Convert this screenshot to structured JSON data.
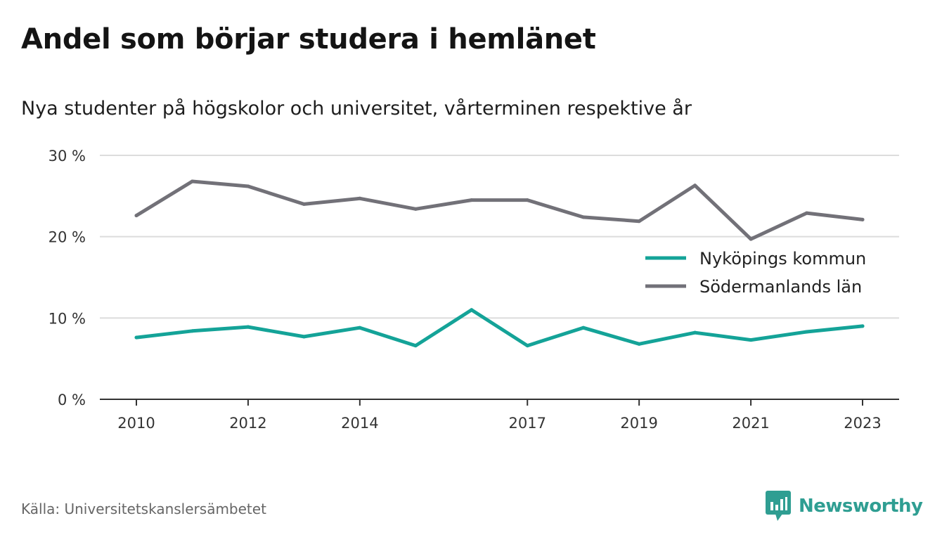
{
  "header": {
    "title": "Andel som börjar studera i hemlänet",
    "subtitle": "Nya studenter på högskolor och universitet, vårterminen respektive år"
  },
  "footer": {
    "source": "Källa: Universitetskanslersämbetet",
    "brand": "Newsworthy",
    "brand_icon": "bar-chart-speech-bubble-icon",
    "brand_color": "#2f9e92"
  },
  "chart_data": {
    "type": "line",
    "x": [
      2010,
      2011,
      2012,
      2013,
      2014,
      2015,
      2016,
      2017,
      2018,
      2019,
      2020,
      2021,
      2022,
      2023
    ],
    "x_tick_labels": [
      "2010",
      "2012",
      "2014",
      "2017",
      "2019",
      "2021",
      "2023"
    ],
    "x_tick_values": [
      2010,
      2012,
      2014,
      2017,
      2019,
      2021,
      2023
    ],
    "y_tick_labels": [
      "0 %",
      "10 %",
      "20 %",
      "30 %"
    ],
    "y_tick_values": [
      0,
      10,
      20,
      30
    ],
    "ylim": [
      0,
      30
    ],
    "grid": true,
    "legend_position": "right",
    "series": [
      {
        "name": "Nyköpings kommun",
        "color": "#14a398",
        "values": [
          7.6,
          8.4,
          8.9,
          7.7,
          8.8,
          6.6,
          11.0,
          6.6,
          8.8,
          6.8,
          8.2,
          7.3,
          8.3,
          9.0
        ]
      },
      {
        "name": "Södermanlands län",
        "color": "#727178",
        "values": [
          22.6,
          26.8,
          26.2,
          24.0,
          24.7,
          23.4,
          24.5,
          24.5,
          22.4,
          21.9,
          26.3,
          19.7,
          22.9,
          22.1
        ]
      }
    ]
  }
}
